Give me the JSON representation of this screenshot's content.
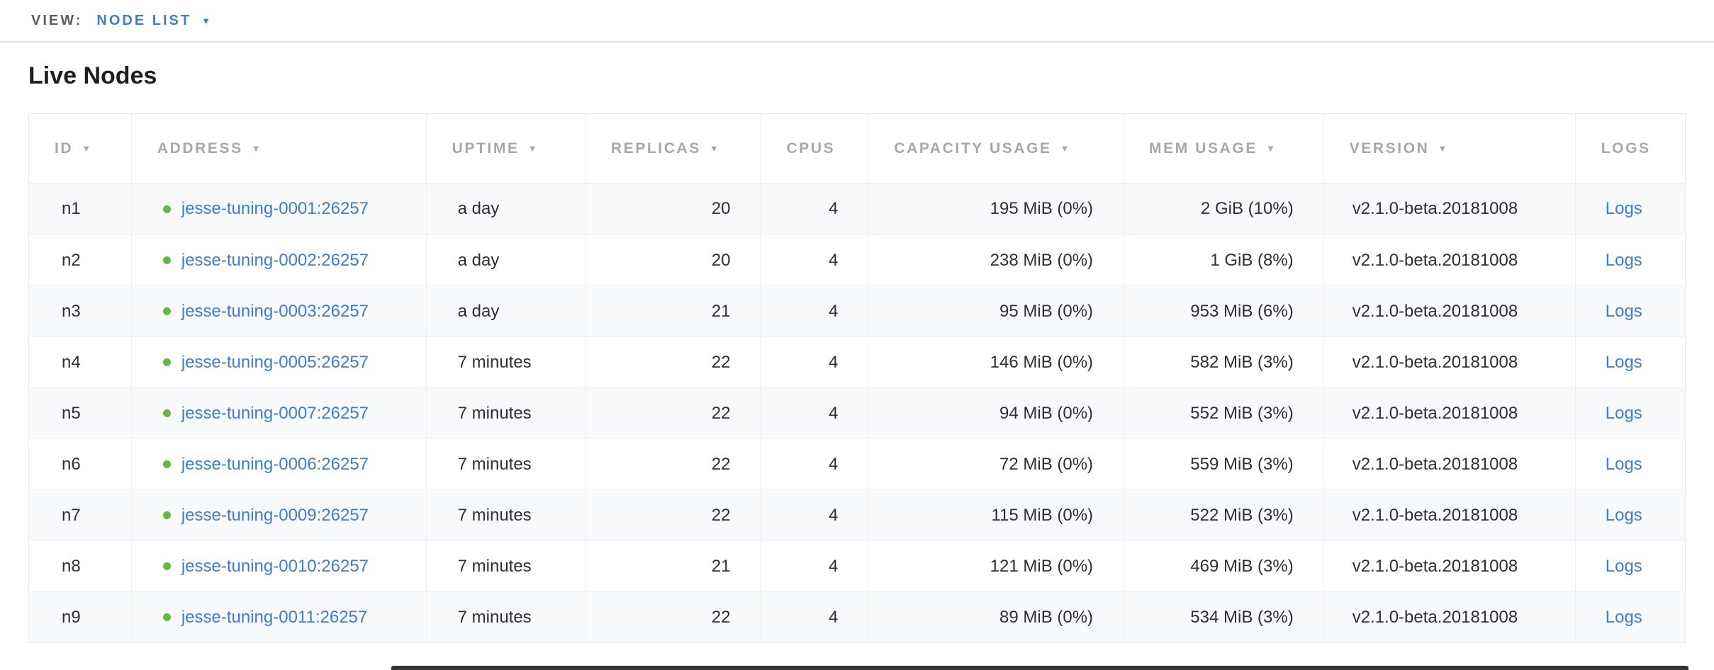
{
  "view_bar": {
    "label": "VIEW:",
    "selected": "NODE LIST"
  },
  "page": {
    "title": "Live Nodes"
  },
  "table": {
    "columns": [
      {
        "label": "ID",
        "sortable": true
      },
      {
        "label": "ADDRESS",
        "sortable": true
      },
      {
        "label": "UPTIME",
        "sortable": true
      },
      {
        "label": "REPLICAS",
        "sortable": true
      },
      {
        "label": "CPUS",
        "sortable": false
      },
      {
        "label": "CAPACITY USAGE",
        "sortable": true
      },
      {
        "label": "MEM USAGE",
        "sortable": true
      },
      {
        "label": "VERSION",
        "sortable": true
      },
      {
        "label": "LOGS",
        "sortable": false
      }
    ],
    "rows": [
      {
        "id": "n1",
        "status": "live",
        "address": "jesse-tuning-0001:26257",
        "uptime": "a day",
        "replicas": "20",
        "cpus": "4",
        "capacity_usage": "195 MiB (0%)",
        "mem_usage": "2 GiB (10%)",
        "version": "v2.1.0-beta.20181008",
        "logs": "Logs"
      },
      {
        "id": "n2",
        "status": "live",
        "address": "jesse-tuning-0002:26257",
        "uptime": "a day",
        "replicas": "20",
        "cpus": "4",
        "capacity_usage": "238 MiB (0%)",
        "mem_usage": "1 GiB (8%)",
        "version": "v2.1.0-beta.20181008",
        "logs": "Logs"
      },
      {
        "id": "n3",
        "status": "live",
        "address": "jesse-tuning-0003:26257",
        "uptime": "a day",
        "replicas": "21",
        "cpus": "4",
        "capacity_usage": "95 MiB (0%)",
        "mem_usage": "953 MiB (6%)",
        "version": "v2.1.0-beta.20181008",
        "logs": "Logs"
      },
      {
        "id": "n4",
        "status": "live",
        "address": "jesse-tuning-0005:26257",
        "uptime": "7 minutes",
        "replicas": "22",
        "cpus": "4",
        "capacity_usage": "146 MiB (0%)",
        "mem_usage": "582 MiB (3%)",
        "version": "v2.1.0-beta.20181008",
        "logs": "Logs"
      },
      {
        "id": "n5",
        "status": "live",
        "address": "jesse-tuning-0007:26257",
        "uptime": "7 minutes",
        "replicas": "22",
        "cpus": "4",
        "capacity_usage": "94 MiB (0%)",
        "mem_usage": "552 MiB (3%)",
        "version": "v2.1.0-beta.20181008",
        "logs": "Logs"
      },
      {
        "id": "n6",
        "status": "live",
        "address": "jesse-tuning-0006:26257",
        "uptime": "7 minutes",
        "replicas": "22",
        "cpus": "4",
        "capacity_usage": "72 MiB (0%)",
        "mem_usage": "559 MiB (3%)",
        "version": "v2.1.0-beta.20181008",
        "logs": "Logs"
      },
      {
        "id": "n7",
        "status": "live",
        "address": "jesse-tuning-0009:26257",
        "uptime": "7 minutes",
        "replicas": "22",
        "cpus": "4",
        "capacity_usage": "115 MiB (0%)",
        "mem_usage": "522 MiB (3%)",
        "version": "v2.1.0-beta.20181008",
        "logs": "Logs"
      },
      {
        "id": "n8",
        "status": "live",
        "address": "jesse-tuning-0010:26257",
        "uptime": "7 minutes",
        "replicas": "21",
        "cpus": "4",
        "capacity_usage": "121 MiB (0%)",
        "mem_usage": "469 MiB (3%)",
        "version": "v2.1.0-beta.20181008",
        "logs": "Logs"
      },
      {
        "id": "n9",
        "status": "live",
        "address": "jesse-tuning-0011:26257",
        "uptime": "7 minutes",
        "replicas": "22",
        "cpus": "4",
        "capacity_usage": "89 MiB (0%)",
        "mem_usage": "534 MiB (3%)",
        "version": "v2.1.0-beta.20181008",
        "logs": "Logs"
      }
    ]
  },
  "colors": {
    "link": "#3b7dd8",
    "live_dot": "#62ba3d",
    "header_text": "#a4a8af",
    "heading_text": "#1c1e22",
    "row_alt_bg": "#f8f9fa"
  }
}
